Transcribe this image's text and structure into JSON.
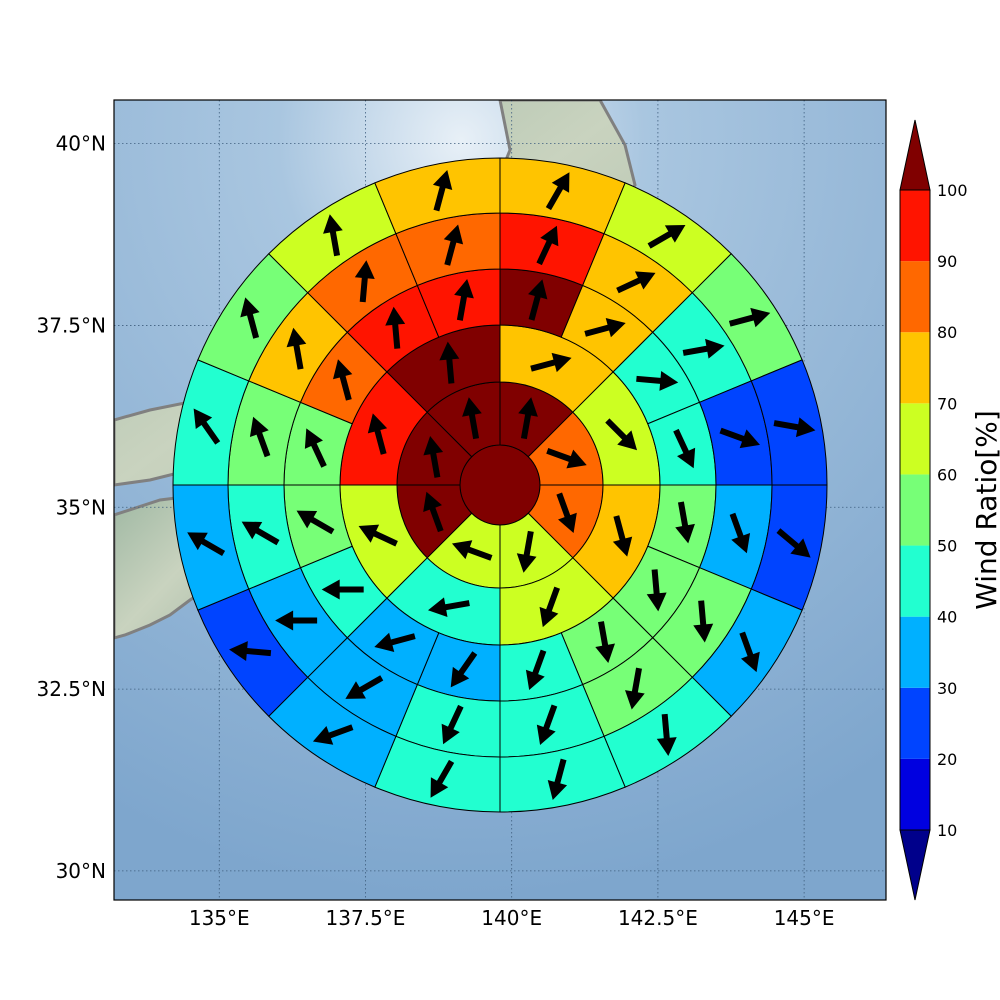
{
  "map": {
    "x_ticks": [
      "135°E",
      "137.5°E",
      "140°E",
      "142.5°E",
      "145°E"
    ],
    "y_ticks": [
      "40°N",
      "37.5°N",
      "35°N",
      "32.5°N",
      "30°N"
    ],
    "x_tick_values": [
      135,
      137.5,
      140,
      142.5,
      145
    ],
    "y_tick_values": [
      40,
      37.5,
      35,
      32.5,
      30
    ],
    "lon_range": [
      133.2,
      146.4
    ],
    "lat_range": [
      29.6,
      40.6
    ],
    "background": "shaded relief with ocean",
    "grid": "dotted"
  },
  "colorbar": {
    "label": "Wind Ratio[%]",
    "tick_values": [
      "10",
      "20",
      "30",
      "40",
      "50",
      "60",
      "70",
      "80",
      "90",
      "100"
    ],
    "colors": [
      "#0000e0",
      "#0044ff",
      "#00b0ff",
      "#22ffd0",
      "#77ff77",
      "#ccff22",
      "#ffc400",
      "#ff6800",
      "#ff1400"
    ],
    "under_color": "#00008b",
    "over_color": "#800000",
    "extend": "both"
  },
  "chart_data": {
    "type": "heatmap",
    "title": "",
    "xlabel": "",
    "ylabel": "",
    "description_of_grid": "polar sector grid centered near Tokyo, 8 sectors per ring starting at north going clockwise",
    "center": {
      "lon": 139.7,
      "lat": 35.0
    },
    "value_unit": "%",
    "rings": [
      {
        "ring": 1,
        "sectors": 1,
        "values": [
          100
        ],
        "arrows_deg": []
      },
      {
        "ring": 2,
        "sectors": 8,
        "values": [
          100,
          80,
          80,
          60,
          60,
          100,
          100,
          100
        ],
        "arrows_deg": [
          10,
          110,
          160,
          190,
          290,
          340,
          350,
          350
        ]
      },
      {
        "ring": 3,
        "sectors": 8,
        "values": [
          70,
          60,
          70,
          60,
          40,
          60,
          90,
          100
        ],
        "arrows_deg": [
          75,
          135,
          165,
          200,
          260,
          295,
          345,
          355
        ]
      },
      {
        "ring": 4,
        "sectors": 16,
        "values": [
          100,
          70,
          40,
          40,
          50,
          50,
          50,
          40,
          30,
          30,
          40,
          50,
          50,
          80,
          90,
          90
        ],
        "arrows_deg": [
          15,
          75,
          95,
          155,
          170,
          175,
          170,
          200,
          215,
          255,
          270,
          300,
          335,
          345,
          355,
          10
        ]
      },
      {
        "ring": 5,
        "sectors": 16,
        "values": [
          90,
          70,
          40,
          20,
          30,
          50,
          50,
          40,
          40,
          30,
          30,
          40,
          50,
          70,
          80,
          80
        ],
        "arrows_deg": [
          25,
          65,
          80,
          110,
          160,
          175,
          190,
          200,
          205,
          240,
          270,
          300,
          340,
          350,
          5,
          15
        ]
      },
      {
        "ring": 6,
        "sectors": 16,
        "values": [
          70,
          60,
          50,
          20,
          20,
          30,
          40,
          40,
          40,
          30,
          20,
          30,
          40,
          50,
          60,
          70
        ],
        "arrows_deg": [
          30,
          60,
          75,
          100,
          130,
          160,
          175,
          195,
          210,
          250,
          275,
          300,
          325,
          345,
          350,
          15
        ]
      }
    ]
  }
}
